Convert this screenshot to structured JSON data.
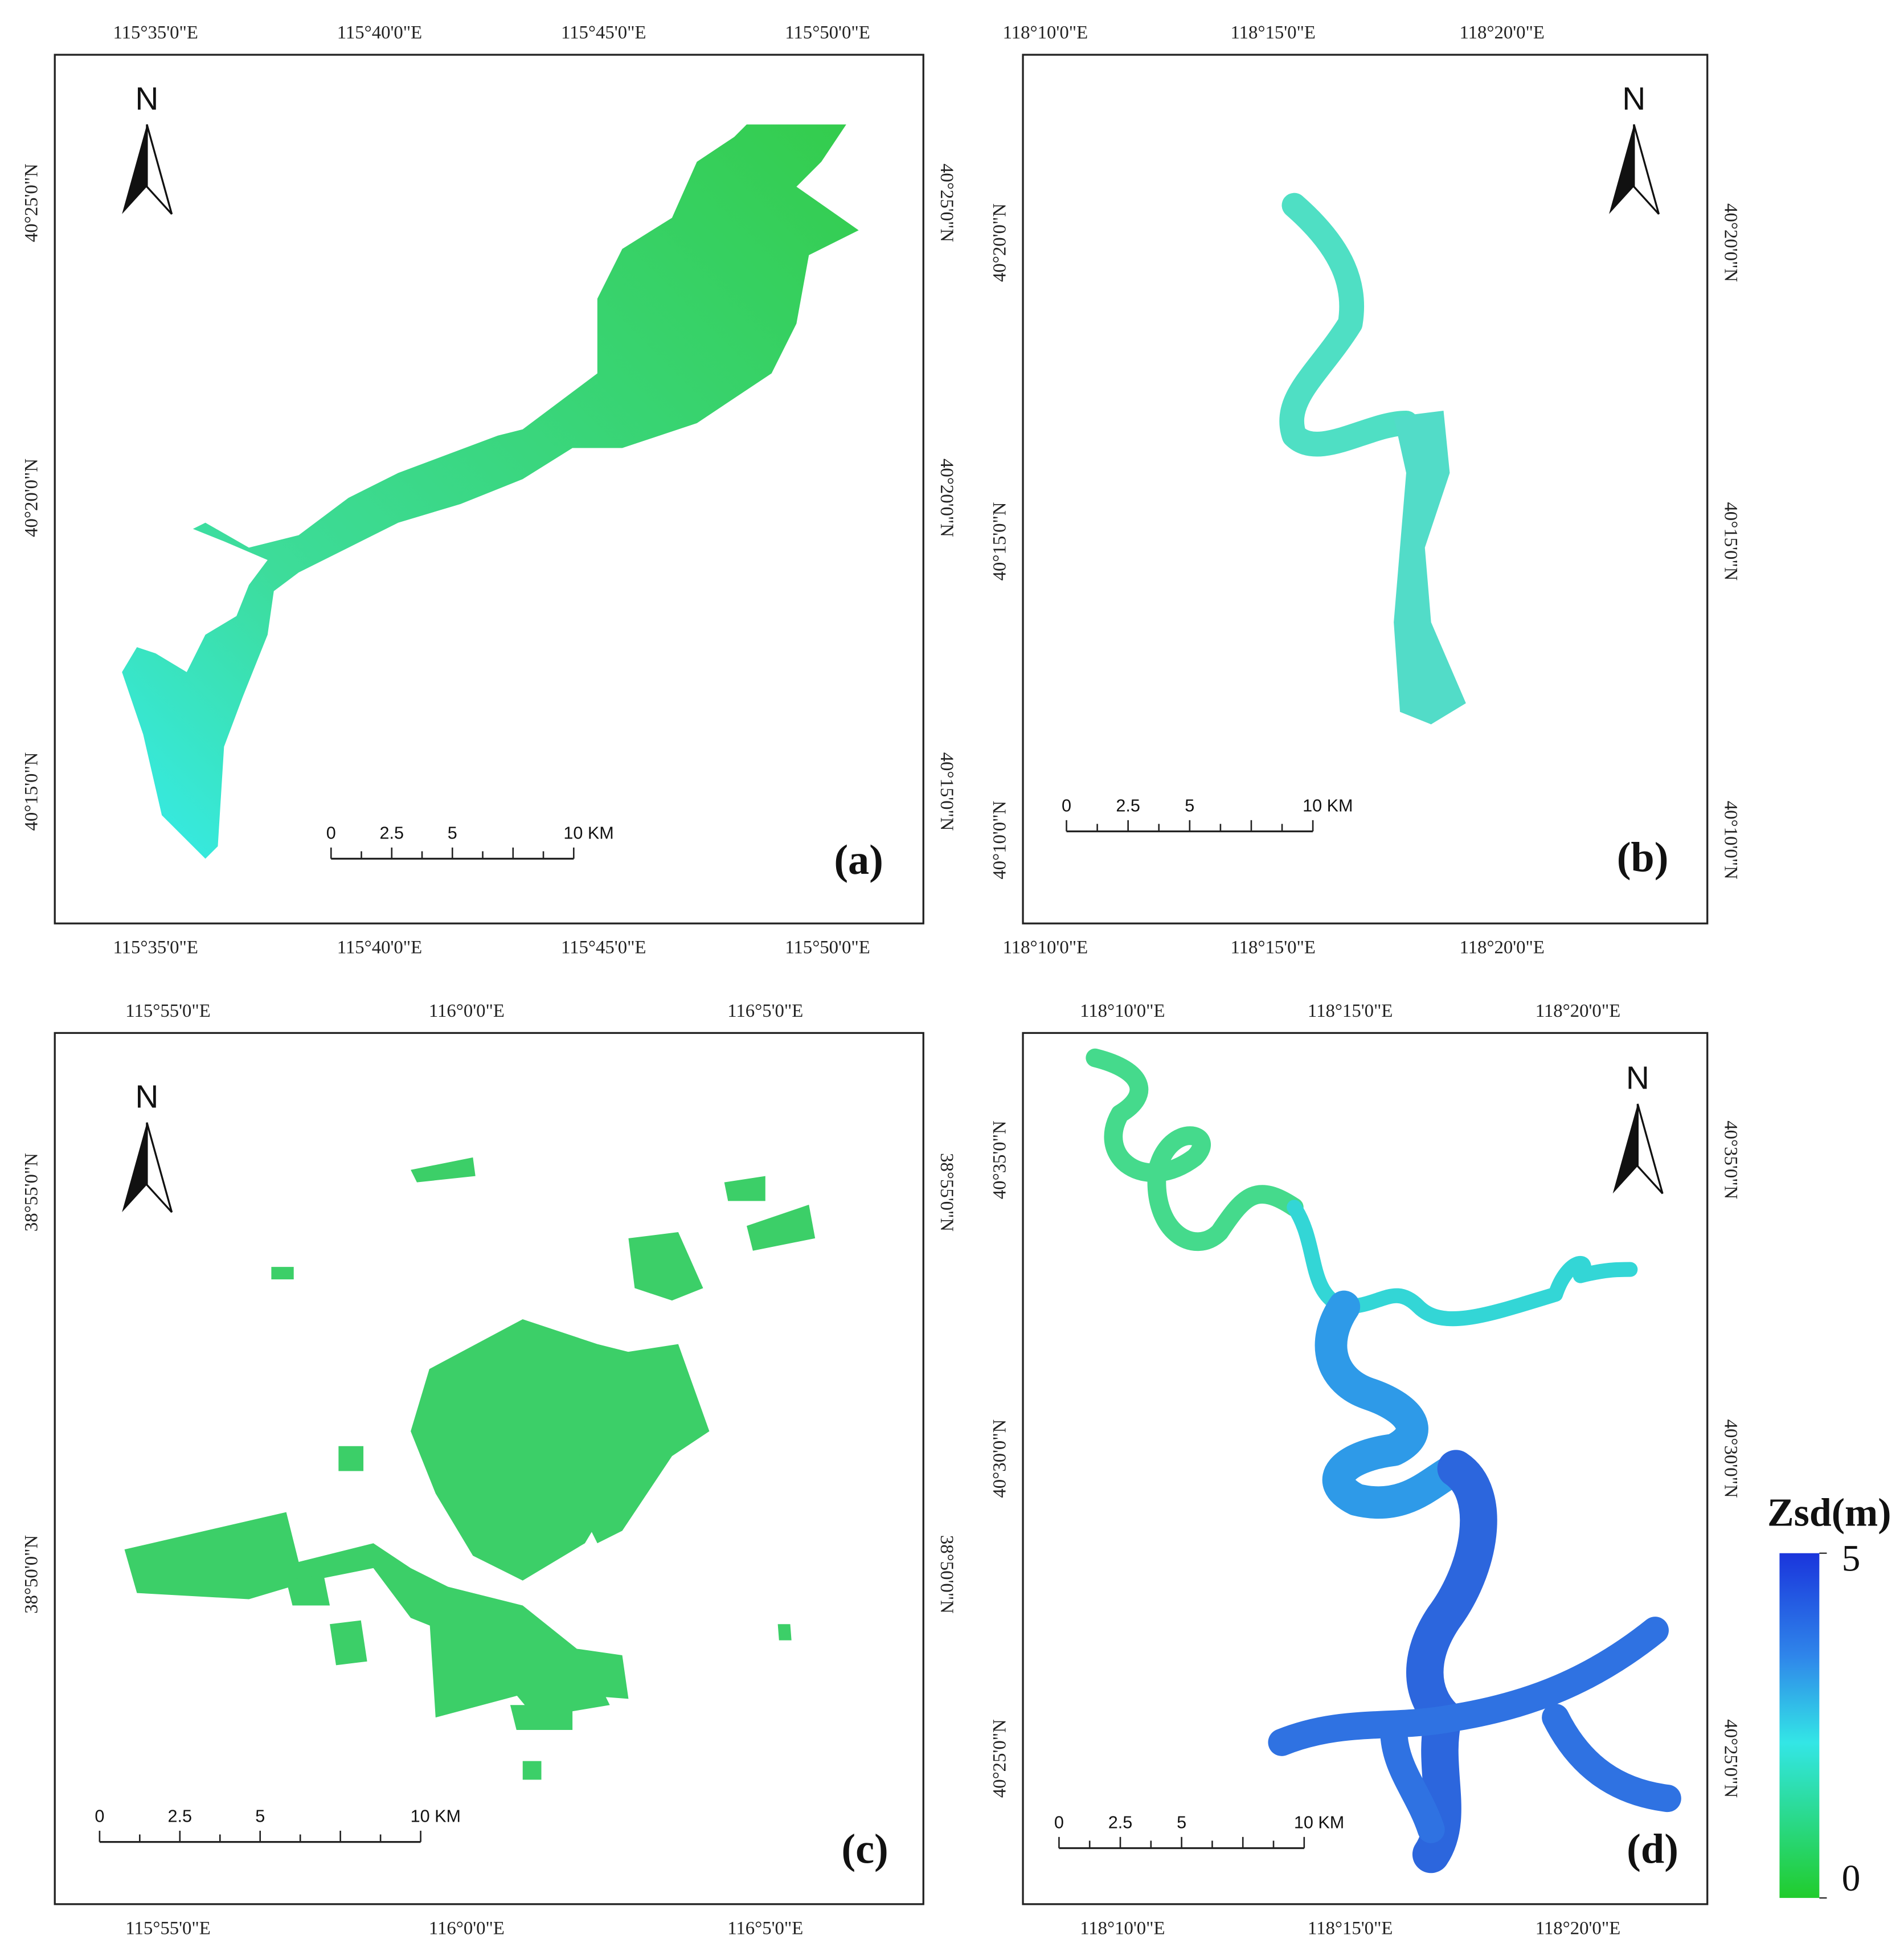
{
  "panels": [
    {
      "label": "(a)",
      "north": "N",
      "lon_labels": [
        "115°35'0\"E",
        "115°40'0\"E",
        "115°45'0\"E",
        "115°50'0\"E"
      ],
      "lat_labels": [
        "40°25'0\"N",
        "40°20'0\"N",
        "40°15'0\"N"
      ],
      "scale_labels": [
        "0",
        "2.5",
        "5",
        "10 KM"
      ]
    },
    {
      "label": "(b)",
      "north": "N",
      "lon_labels": [
        "118°10'0\"E",
        "118°15'0\"E",
        "118°20'0\"E"
      ],
      "lat_labels": [
        "40°20'0\"N",
        "40°15'0\"N",
        "40°10'0\"N"
      ],
      "scale_labels": [
        "0",
        "2.5",
        "5",
        "10 KM"
      ]
    },
    {
      "label": "(c)",
      "north": "N",
      "lon_labels": [
        "115°55'0\"E",
        "116°0'0\"E",
        "116°5'0\"E"
      ],
      "lat_labels": [
        "38°55'0\"N",
        "38°50'0\"N"
      ],
      "scale_labels": [
        "0",
        "2.5",
        "5",
        "10 KM"
      ]
    },
    {
      "label": "(d)",
      "north": "N",
      "lon_labels": [
        "118°10'0\"E",
        "118°15'0\"E",
        "118°20'0\"E"
      ],
      "lat_labels": [
        "40°35'0\"N",
        "40°30'0\"N",
        "40°25'0\"N"
      ],
      "scale_labels": [
        "0",
        "2.5",
        "5",
        "10 KM"
      ]
    }
  ],
  "colorbar": {
    "title": "Zsd(m)",
    "lim": [
      0,
      5
    ],
    "ticks": [
      5,
      0
    ]
  }
}
